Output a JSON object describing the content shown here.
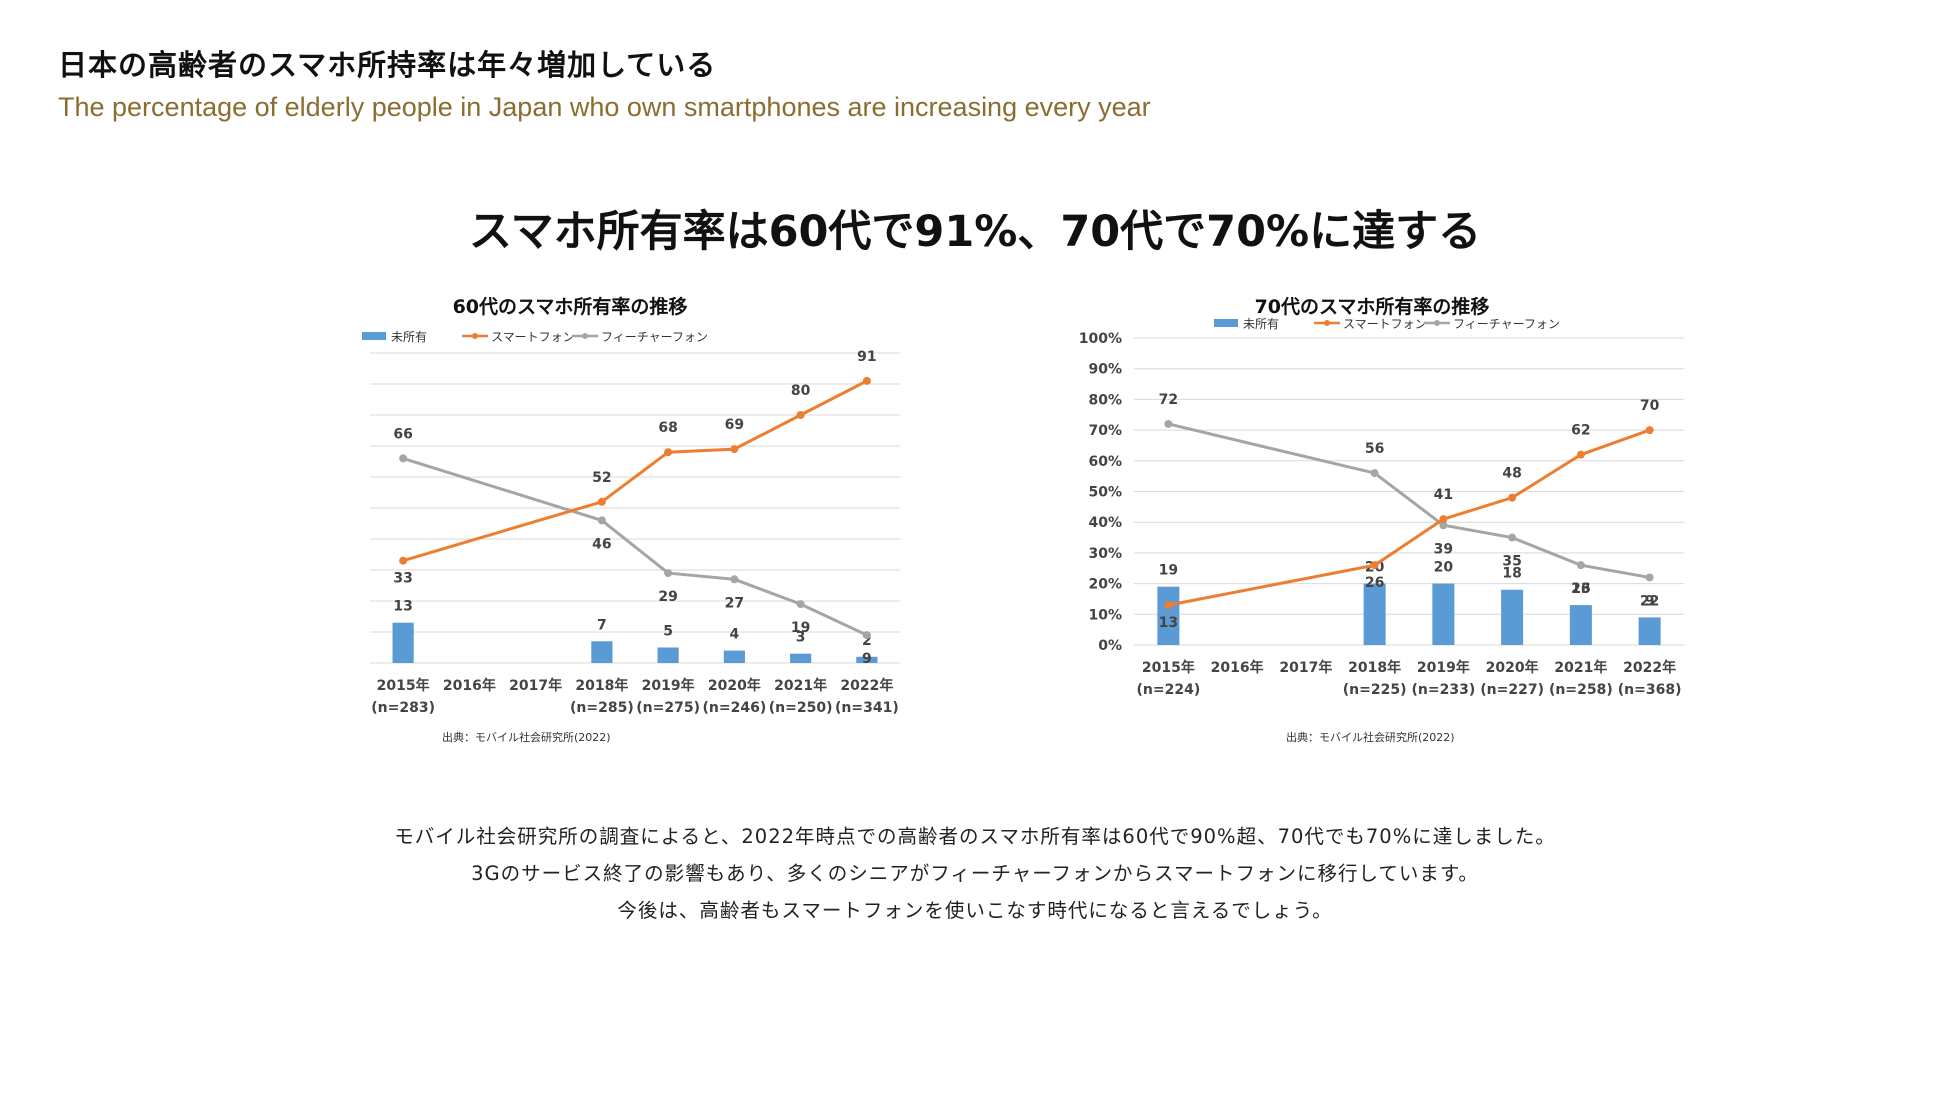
{
  "page": {
    "title": "日本の高齢者のスマホ所持率は年々増加している",
    "subtitle": "The percentage of elderly people in Japan who own smartphones are increasing every year",
    "headline": "スマホ所有率は60代で91%、70代で70%に達する",
    "body_lines": [
      "モバイル社会研究所の調査によると、2022年時点での高齢者のスマホ所有率は60代で90%超、70代でも70%に達しました。",
      "3Gのサービス終了の影響もあり、多くのシニアがフィーチャーフォンからスマートフォンに移行しています。",
      "今後は、高齢者もスマートフォンを使いこなす時代になると言えるでしょう。"
    ]
  },
  "colors": {
    "bar": "#5b9bd5",
    "smartphone": "#ed7d31",
    "feature_phone": "#a5a5a5",
    "grid": "#d9d9d9",
    "subtitle": "#8a6d2f"
  },
  "chart_data": [
    {
      "id": "chart60",
      "type": "bar+line",
      "title": "60代のスマホ所有率の推移",
      "source": "出典：モバイル社会研究所(2022)",
      "categories": [
        "2015年",
        "2016年",
        "2017年",
        "2018年",
        "2019年",
        "2020年",
        "2021年",
        "2022年"
      ],
      "sample_sizes": [
        "(n=283)",
        "",
        "",
        "(n=285)",
        "(n=275)",
        "(n=246)",
        "(n=250)",
        "(n=341)"
      ],
      "ylim": [
        0,
        100
      ],
      "yticks": [
        "0%",
        "10%",
        "20%",
        "30%",
        "40%",
        "50%",
        "60%",
        "70%",
        "80%",
        "90%",
        "100%"
      ],
      "series": [
        {
          "name": "未所有",
          "kind": "bar",
          "values": [
            13,
            null,
            null,
            7,
            5,
            4,
            3,
            2
          ]
        },
        {
          "name": "スマートフォン",
          "kind": "line",
          "values": [
            33,
            null,
            null,
            52,
            68,
            69,
            80,
            91
          ]
        },
        {
          "name": "フィーチャーフォン",
          "kind": "line",
          "values": [
            66,
            null,
            null,
            46,
            29,
            27,
            19,
            9
          ]
        }
      ]
    },
    {
      "id": "chart70",
      "type": "bar+line",
      "title": "70代のスマホ所有率の推移",
      "source": "出典：モバイル社会研究所(2022)",
      "categories": [
        "2015年",
        "2016年",
        "2017年",
        "2018年",
        "2019年",
        "2020年",
        "2021年",
        "2022年"
      ],
      "sample_sizes": [
        "(n=224)",
        "",
        "",
        "(n=225)",
        "(n=233)",
        "(n=227)",
        "(n=258)",
        "(n=368)"
      ],
      "ylim": [
        0,
        100
      ],
      "yticks": [
        "0%",
        "10%",
        "20%",
        "30%",
        "40%",
        "50%",
        "60%",
        "70%",
        "80%",
        "90%",
        "100%"
      ],
      "series": [
        {
          "name": "未所有",
          "kind": "bar",
          "values": [
            19,
            null,
            null,
            20,
            20,
            18,
            13,
            9
          ]
        },
        {
          "name": "スマートフォン",
          "kind": "line",
          "values": [
            13,
            null,
            null,
            26,
            41,
            48,
            62,
            70
          ]
        },
        {
          "name": "フィーチャーフォン",
          "kind": "line",
          "values": [
            72,
            null,
            null,
            56,
            39,
            35,
            26,
            22
          ]
        }
      ]
    }
  ]
}
